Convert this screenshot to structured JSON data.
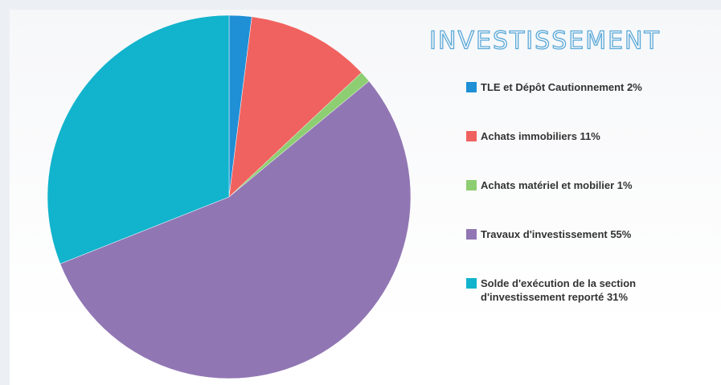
{
  "chart_data": {
    "type": "pie",
    "title": "INVESTISSEMENT",
    "categories": [
      "TLE et Dépôt Cautionnement 2%",
      "Achats immobiliers 11%",
      "Achats matériel et mobilier 1%",
      "Travaux d'investissement 55%",
      "Solde d'exécution de la section d'investissement reporté 31%"
    ],
    "values": [
      2,
      11,
      1,
      55,
      31
    ],
    "colors": [
      "#1f8fd6",
      "#f0625f",
      "#8dce72",
      "#9176b4",
      "#12b3cc"
    ],
    "legend": "right"
  }
}
